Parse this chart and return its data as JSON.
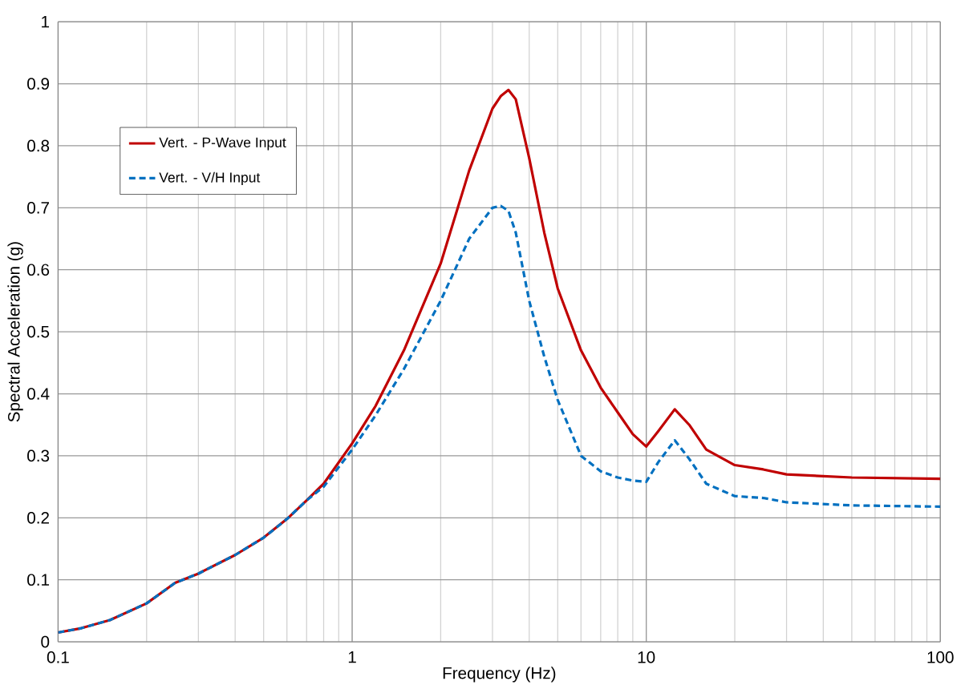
{
  "chart_data": {
    "type": "line",
    "xlabel": "Frequency (Hz)",
    "ylabel": "Spectral Acceleration (g)",
    "log": "x",
    "grid": true,
    "legend": "top left",
    "x": [
      0.1,
      0.12,
      0.15,
      0.2,
      0.25,
      0.3,
      0.4,
      0.5,
      0.6,
      0.7,
      0.8,
      1,
      1.2,
      1.5,
      2,
      2.5,
      3,
      3.2,
      3.4,
      3.6,
      4,
      4.5,
      5,
      6,
      7,
      8,
      9,
      10,
      11,
      12.5,
      14,
      16,
      20,
      25,
      30,
      50,
      100
    ],
    "xlim": [
      0.1,
      100
    ],
    "xticks": [
      0.1,
      1,
      10,
      100
    ],
    "ylim": [
      0,
      1
    ],
    "yticks": [
      0,
      0.1,
      0.2,
      0.3,
      0.4,
      0.5,
      0.6,
      0.7,
      0.8,
      0.9,
      1
    ],
    "series": [
      {
        "name": "Vert. - P-Wave Input",
        "color": "#c00000",
        "line_style": "solid",
        "values": [
          0.015,
          0.022,
          0.035,
          0.062,
          0.095,
          0.11,
          0.14,
          0.168,
          0.198,
          0.228,
          0.255,
          0.32,
          0.38,
          0.47,
          0.61,
          0.76,
          0.86,
          0.88,
          0.89,
          0.875,
          0.78,
          0.66,
          0.57,
          0.47,
          0.41,
          0.37,
          0.335,
          0.315,
          0.34,
          0.375,
          0.35,
          0.31,
          0.285,
          0.278,
          0.27,
          0.265,
          0.263
        ]
      },
      {
        "name": "Vert. - V/H Input",
        "color": "#0070c0",
        "line_style": "dashed",
        "values": [
          0.015,
          0.022,
          0.035,
          0.062,
          0.095,
          0.11,
          0.14,
          0.168,
          0.198,
          0.228,
          0.25,
          0.31,
          0.365,
          0.44,
          0.55,
          0.65,
          0.7,
          0.703,
          0.695,
          0.66,
          0.55,
          0.46,
          0.39,
          0.3,
          0.275,
          0.265,
          0.26,
          0.258,
          0.29,
          0.325,
          0.295,
          0.255,
          0.235,
          0.232,
          0.225,
          0.22,
          0.218
        ]
      }
    ]
  }
}
